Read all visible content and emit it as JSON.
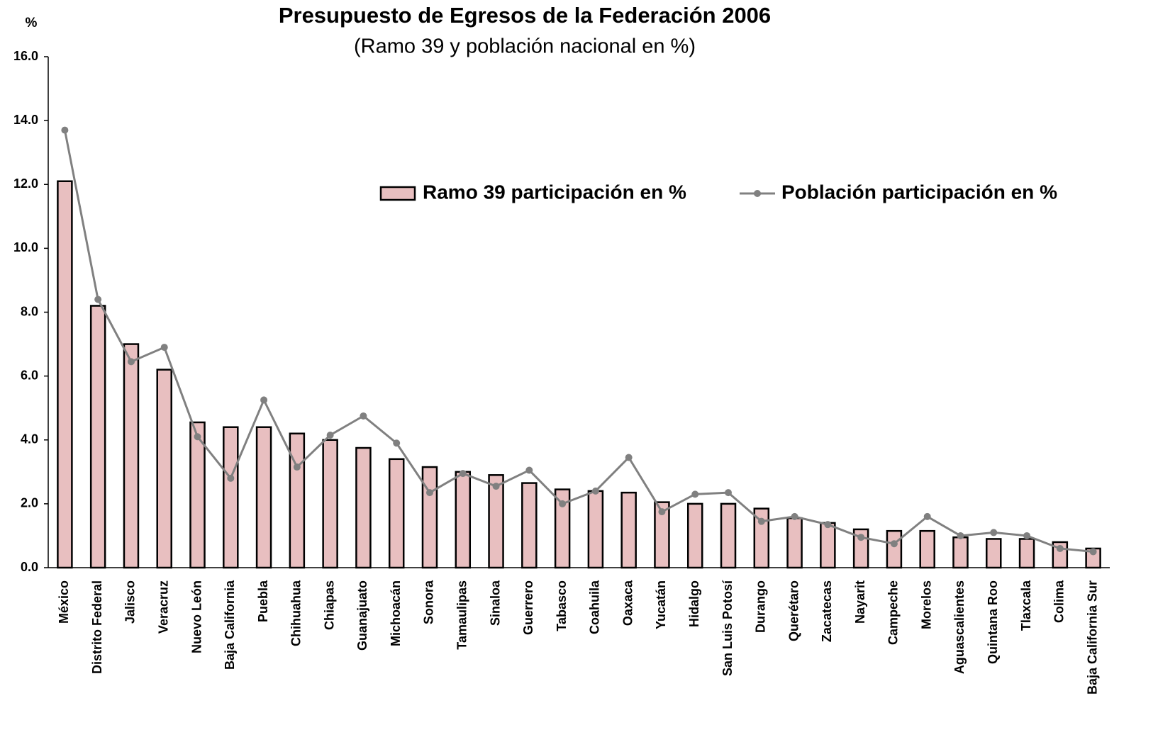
{
  "chart_data": {
    "type": "bar",
    "title": "Presupuesto de Egresos de la Federación 2006",
    "subtitle": "(Ramo 39 y población nacional en %)",
    "y_label": "%",
    "categories": [
      "México",
      "Distrito Federal",
      "Jalisco",
      "Veracruz",
      "Nuevo León",
      "Baja California",
      "Puebla",
      "Chihuahua",
      "Chiapas",
      "Guanajuato",
      "Michoacán",
      "Sonora",
      "Tamaulipas",
      "Sinaloa",
      "Guerrero",
      "Tabasco",
      "Coahuila",
      "Oaxaca",
      "Yucatán",
      "Hidalgo",
      "San Luis Potosí",
      "Durango",
      "Querétaro",
      "Zacatecas",
      "Nayarit",
      "Campeche",
      "Morelos",
      "Aguascalientes",
      "Quintana Roo",
      "Tlaxcala",
      "Colima",
      "Baja California Sur"
    ],
    "series": [
      {
        "name": "Ramo 39 participación en %",
        "type": "bar",
        "color": "#e8bfc0",
        "values": [
          12.1,
          8.2,
          7.0,
          6.2,
          4.55,
          4.4,
          4.4,
          4.2,
          4.0,
          3.75,
          3.4,
          3.15,
          3.0,
          2.9,
          2.65,
          2.45,
          2.4,
          2.35,
          2.05,
          2.0,
          2.0,
          1.85,
          1.55,
          1.4,
          1.2,
          1.15,
          1.15,
          0.95,
          0.9,
          0.9,
          0.8,
          0.6
        ]
      },
      {
        "name": "Población participación en %",
        "type": "line",
        "color": "#808080",
        "values": [
          13.7,
          8.4,
          6.45,
          6.9,
          4.1,
          2.8,
          5.25,
          3.15,
          4.15,
          4.75,
          3.9,
          2.35,
          2.95,
          2.55,
          3.05,
          2.0,
          2.4,
          3.45,
          1.75,
          2.3,
          2.35,
          1.45,
          1.6,
          1.35,
          0.95,
          0.75,
          1.6,
          1.0,
          1.1,
          1.0,
          0.6,
          0.5
        ]
      }
    ],
    "ylim": [
      0,
      16
    ],
    "yticks": [
      {
        "value": 0,
        "label": "0.0"
      },
      {
        "value": 2,
        "label": "2.0"
      },
      {
        "value": 4,
        "label": "4.0"
      },
      {
        "value": 6,
        "label": "6.0"
      },
      {
        "value": 8,
        "label": "8.0"
      },
      {
        "value": 10,
        "label": "10.0"
      },
      {
        "value": 12,
        "label": "12.0"
      },
      {
        "value": 14,
        "label": "14.0"
      },
      {
        "value": 16,
        "label": "16.0"
      }
    ],
    "grid": false,
    "legend": "upper right"
  }
}
